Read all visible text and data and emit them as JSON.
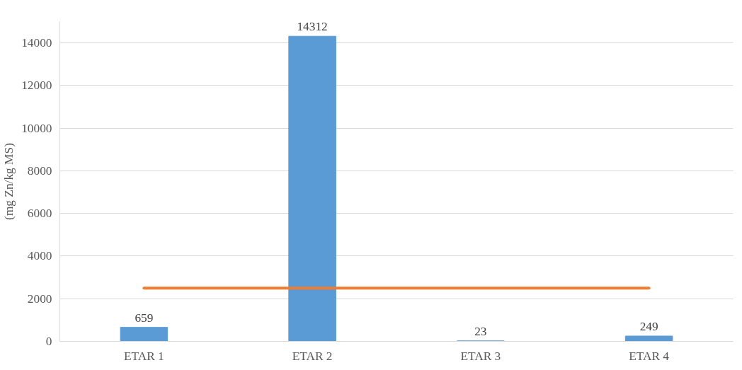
{
  "chart_data": {
    "type": "bar",
    "ylabel": "(mg Zn/kg MS)",
    "categories": [
      "ETAR 1",
      "ETAR 2",
      "ETAR 3",
      "ETAR 4"
    ],
    "series": [
      {
        "color": "#5b9bd5",
        "values": [
          659,
          14312,
          23,
          249
        ],
        "value_labels": [
          "659",
          "14312",
          "23",
          "249"
        ]
      },
      {
        "type": "line",
        "color": "#ed7d31",
        "values": [
          2500,
          2500,
          2500,
          2500
        ]
      }
    ],
    "ylim": [
      0,
      15000
    ],
    "yticks": [
      0,
      2000,
      4000,
      6000,
      8000,
      10000,
      12000,
      14000
    ],
    "grid": "y"
  }
}
